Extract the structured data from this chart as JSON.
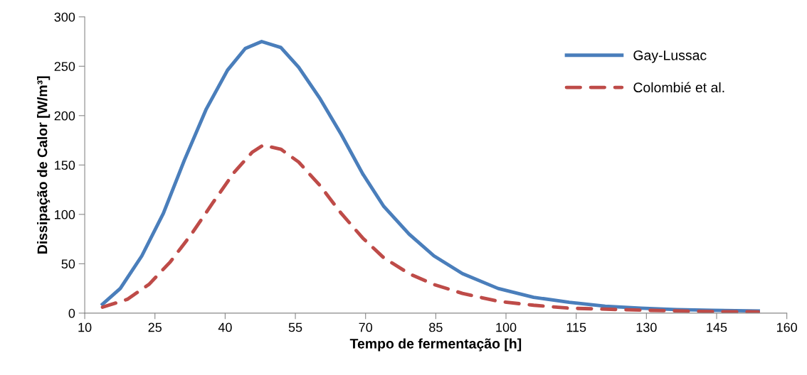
{
  "chart_data": {
    "type": "line",
    "xlabel": "Tempo de fermentação [h]",
    "ylabel": "Dissipação de Calor [W/m³]",
    "xlim": [
      10,
      160
    ],
    "xticks": [
      10,
      25,
      40,
      55,
      70,
      85,
      100,
      115,
      130,
      145,
      160
    ],
    "ylim": [
      0,
      300
    ],
    "yticks": [
      0,
      50,
      100,
      150,
      200,
      250,
      300
    ],
    "grid": false,
    "legend": "top right",
    "marker": "none",
    "series": [
      {
        "name": "Gay-Lussac",
        "color": "#4a7ebb",
        "line_style": "solid",
        "x": [
          13.8,
          17.6,
          22.2,
          26.8,
          31.3,
          35.9,
          40.5,
          44.3,
          47.8,
          51.9,
          55.7,
          60.3,
          64.8,
          69.4,
          73.9,
          79.3,
          84.6,
          90.7,
          98.3,
          105.9,
          113.5,
          121.2,
          128.8,
          136.4,
          144,
          153.9
        ],
        "values": [
          9,
          25,
          58,
          101,
          155,
          206,
          246,
          268,
          275,
          269,
          249,
          217,
          181,
          141,
          108,
          80,
          58,
          40,
          25,
          16,
          11,
          7,
          5,
          3.6,
          2.9,
          2.2
        ]
      },
      {
        "name": "Colombié et al.",
        "color": "#be4b48",
        "line_style": "dashed",
        "x": [
          13.8,
          19.1,
          23.7,
          28.3,
          32.8,
          37.4,
          42,
          45.8,
          48.1,
          51.9,
          55.7,
          60.3,
          64.8,
          69.4,
          73.9,
          79.3,
          84.6,
          90.7,
          98.3,
          105.9,
          113.5,
          128.8,
          144,
          153.9
        ],
        "values": [
          6,
          14,
          29,
          52,
          80,
          112,
          143,
          163,
          170,
          166,
          153,
          129,
          101,
          76,
          56,
          40,
          29,
          20,
          12,
          8,
          5,
          3,
          1.5,
          1.3
        ]
      }
    ]
  }
}
